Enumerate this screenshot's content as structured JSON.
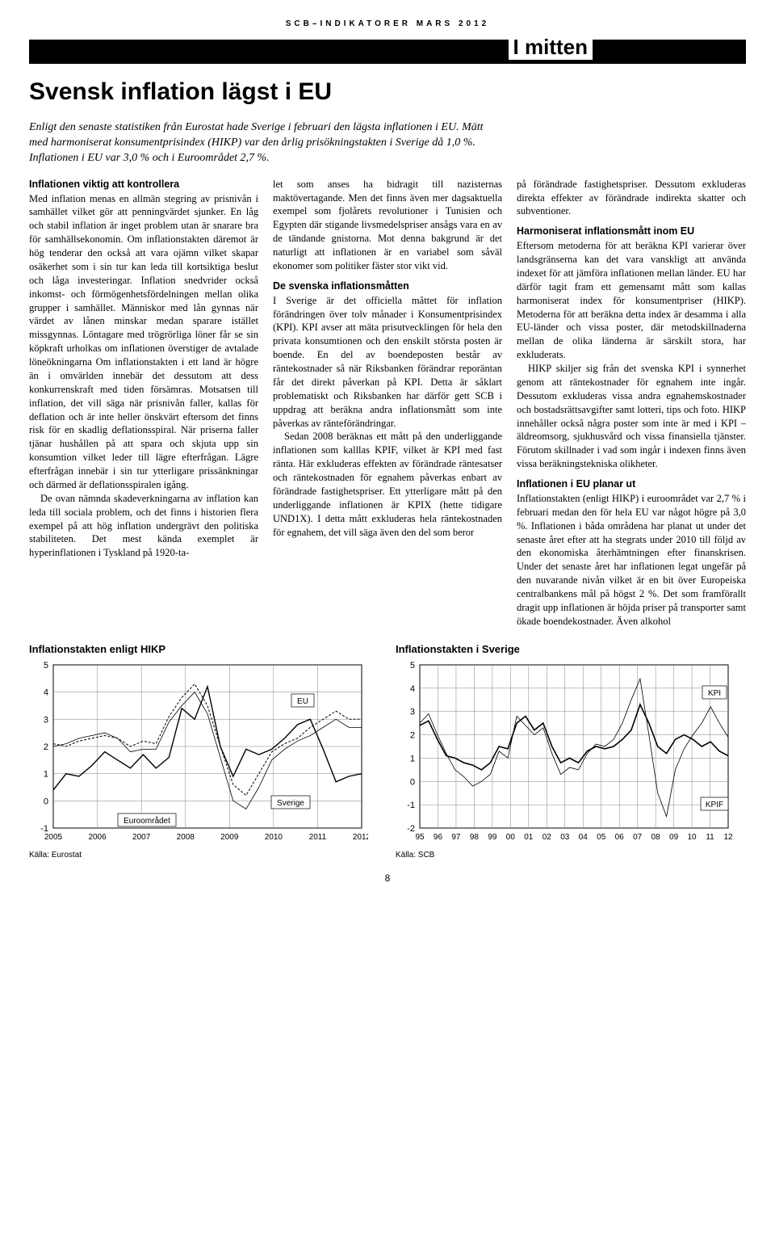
{
  "header_small": "SCB–INDIKATORER MARS 2012",
  "mitten": "I mitten",
  "title": "Svensk inflation lägst i EU",
  "intro": "Enligt den senaste statistiken från Eurostat hade Sverige i februari den lägsta inflationen i EU. Mätt med harmoniserat konsumentprisindex (HIKP) var den årlig prisökningstakten i Sverige då 1,0 %. Inflationen i EU var 3,0 % och i Euroområdet 2,7 %.",
  "col1": {
    "h1": "Inflationen viktig att kontrollera",
    "p1": "Med inflation menas en allmän stegring av prisnivån i samhället vilket gör att penningvärdet sjunker. En låg och stabil inflation är inget problem utan är snarare bra för samhällsekonomin. Om inflationstakten däremot är hög tenderar den också att vara ojämn vilket skapar osäkerhet som i sin tur kan leda till kortsiktiga beslut och låga investeringar. Inflation snedvrider också inkomst- och förmögenhetsfördelningen mellan olika grupper i samhället. Människor med lån gynnas när värdet av lånen minskar medan sparare istället missgynnas. Löntagare med trögrörliga löner får se sin köpkraft urholkas om inflationen överstiger de avtalade löneökningarna Om inflationstakten i ett land är högre än i omvärlden innebär det dessutom att dess konkurrenskraft med tiden försämras. Motsatsen till inflation, det vill säga när prisnivån faller, kallas för deflation och är inte heller önskvärt eftersom det finns risk för en skadlig deflationsspiral. När priserna faller tjänar hushållen på att spara och skjuta upp sin konsumtion vilket leder till lägre efterfrågan. Lägre efterfrågan innebär i sin tur ytterligare prissänkningar och därmed är deflationsspiralen igång.",
    "p2": "De ovan nämnda skadeverkningarna av inflation kan leda till sociala problem, och det finns i historien flera exempel på att hög inflation undergrävt den politiska stabiliteten. Det mest kända exemplet är hyperinflationen i Tyskland på 1920-ta-"
  },
  "col2": {
    "p1": "let som anses ha bidragit till nazisternas maktövertagande. Men det finns även mer dagsaktuella exempel som fjolårets revolutioner i Tunisien och Egypten där stigande livsmedelspriser ansågs vara en av de tändande gnistorna. Mot denna bakgrund är det naturligt att inflationen är en variabel som såväl ekonomer som politiker fäster stor vikt vid.",
    "h2": "De svenska inflationsmåtten",
    "p2": "I Sverige är det officiella måttet för inflation förändringen över tolv månader i Konsumentprisindex (KPI). KPI avser att mäta prisutvecklingen för hela den privata konsumtionen och den enskilt största posten är boende. En del av boendeposten består av räntekostnader så när Riksbanken förändrar reporäntan får det direkt påverkan på KPI. Detta är såklart problematiskt och Riksbanken har därför gett SCB i uppdrag att beräkna andra inflationsmått som inte påverkas av ränteförändringar.",
    "p3": "Sedan 2008 beräknas ett mått på den underliggande inflationen som kalllas KPIF, vilket är KPI med fast ränta. Här exkluderas effekten av förändrade räntesatser och räntekostnaden för egnahem påverkas enbart av förändrade fastighetspriser. Ett ytterligare mått på den underliggande inflationen är KPIX (hette tidigare UND1X). I detta mått exkluderas hela räntekostnaden för egnahem, det vill säga även den del som beror"
  },
  "col3": {
    "p1": "på förändrade fastighetspriser. Dessutom exkluderas direkta effekter av förändrade indirekta skatter och subventioner.",
    "h2": "Harmoniserat inflationsmått inom EU",
    "p2": "Eftersom metoderna för att beräkna KPI varierar över landsgränserna kan det vara vanskligt att använda indexet för att jämföra inflationen mellan länder. EU har därför tagit fram ett gemensamt mått som kallas harmoniserat index för konsumentpriser (HIKP). Metoderna för att beräkna detta index är desamma i alla EU-länder och vissa poster, där metodskillnaderna mellan de olika länderna är särskilt stora, har exkluderats.",
    "p3": "HIKP skiljer sig från det svenska KPI i synnerhet genom att räntekostnader för egnahem inte ingår. Dessutom exkluderas vissa andra egnahemskostnader och bostadsrättsavgifter samt lotteri, tips och foto. HIKP innehåller också några poster som inte är med i KPI – äldreomsorg, sjukhusvård och vissa finansiella tjänster. Förutom skillnader i vad som ingår i indexen finns även vissa beräkningstekniska olikheter.",
    "h3": "Inflationen i EU planar ut",
    "p4": "Inflationstakten (enligt HIKP) i euroområdet var 2,7 % i februari medan den för hela EU var något högre på 3,0 %. Inflationen i båda områdena har planat ut under det senaste året efter att ha stegrats under 2010 till följd av den ekonomiska återhämtningen efter finanskrisen. Under det senaste året har inflationen legat ungefär på den nuvarande nivån vilket är en bit över Europeiska centralbankens mål på högst 2 %. Det som framförallt dragit upp inflationen är höjda priser på transporter samt ökade boendekostnader. Även alkohol"
  },
  "chart1": {
    "title": "Inflationstakten enligt HIKP",
    "type": "line",
    "ylim": [
      -1,
      5
    ],
    "ytick_step": 1,
    "x_labels": [
      "2005",
      "2006",
      "2007",
      "2008",
      "2009",
      "2010",
      "2011",
      "2012"
    ],
    "background_color": "#ffffff",
    "axis_color": "#000000",
    "grid_color": "#808080",
    "series": {
      "sverige": {
        "label": "Sverige",
        "color": "#000000",
        "style": "solid",
        "width": 1.4,
        "values": [
          0.4,
          1.0,
          0.9,
          1.3,
          1.8,
          1.5,
          1.2,
          1.7,
          1.2,
          1.6,
          3.4,
          3.0,
          4.2,
          2.0,
          0.9,
          1.9,
          1.7,
          1.9,
          2.3,
          2.8,
          3.0,
          1.9,
          0.7,
          0.9,
          1.0
        ]
      },
      "euro": {
        "label": "Euroområdet",
        "color": "#000000",
        "style": "solid",
        "width": 0.8,
        "values": [
          2.0,
          2.1,
          2.3,
          2.4,
          2.5,
          2.3,
          1.8,
          1.9,
          1.9,
          2.9,
          3.5,
          4.0,
          3.2,
          1.6,
          0.0,
          -0.3,
          0.5,
          1.5,
          1.9,
          2.2,
          2.4,
          2.7,
          3.0,
          2.7,
          2.7
        ]
      },
      "eu": {
        "label": "EU",
        "color": "#000000",
        "style": "dashed",
        "width": 1.0,
        "values": [
          2.1,
          2.0,
          2.2,
          2.3,
          2.4,
          2.3,
          2.0,
          2.2,
          2.1,
          3.1,
          3.8,
          4.3,
          3.5,
          2.0,
          0.6,
          0.2,
          1.0,
          1.8,
          2.1,
          2.3,
          2.7,
          3.0,
          3.3,
          3.0,
          3.0
        ]
      }
    },
    "legend_labels": {
      "sverige": "Sverige",
      "euro": "Euroområdet",
      "eu": "EU"
    },
    "source": "Källa: Eurostat"
  },
  "chart2": {
    "title": "Inflationstakten i Sverige",
    "type": "line",
    "ylim": [
      -2,
      5
    ],
    "ytick_step": 1,
    "x_labels": [
      "95",
      "96",
      "97",
      "98",
      "99",
      "00",
      "01",
      "02",
      "03",
      "04",
      "05",
      "06",
      "07",
      "08",
      "09",
      "10",
      "11",
      "12"
    ],
    "background_color": "#ffffff",
    "axis_color": "#000000",
    "grid_color": "#808080",
    "series": {
      "kpi": {
        "label": "KPI",
        "color": "#000000",
        "style": "solid",
        "width": 0.8,
        "values": [
          2.5,
          2.9,
          2.0,
          1.2,
          0.5,
          0.2,
          -0.2,
          0.0,
          0.3,
          1.3,
          1.0,
          2.8,
          2.4,
          2.0,
          2.3,
          1.2,
          0.3,
          0.6,
          0.5,
          1.2,
          1.6,
          1.5,
          1.8,
          2.5,
          3.5,
          4.4,
          2.0,
          -0.5,
          -1.5,
          0.5,
          1.4,
          2.0,
          2.5,
          3.2,
          2.5,
          1.9
        ]
      },
      "kpif": {
        "label": "KPIF",
        "color": "#000000",
        "style": "solid",
        "width": 1.6,
        "values": [
          2.4,
          2.6,
          1.8,
          1.1,
          1.0,
          0.8,
          0.7,
          0.5,
          0.8,
          1.5,
          1.4,
          2.5,
          2.8,
          2.2,
          2.5,
          1.5,
          0.8,
          1.0,
          0.8,
          1.3,
          1.5,
          1.4,
          1.5,
          1.8,
          2.2,
          3.3,
          2.5,
          1.5,
          1.2,
          1.8,
          2.0,
          1.8,
          1.5,
          1.7,
          1.3,
          1.1
        ]
      }
    },
    "legend_labels": {
      "kpi": "KPI",
      "kpif": "KPIF"
    },
    "source": "Källa: SCB"
  },
  "page_number": "8"
}
